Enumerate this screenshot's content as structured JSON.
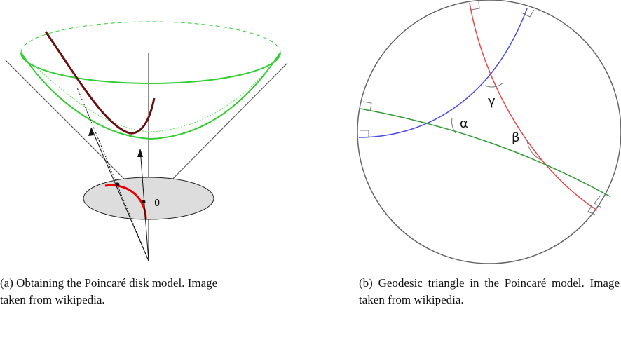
{
  "figures": [
    {
      "label": "(a)",
      "caption": "Obtaining the Poincaré disk model. Image taken from wikipedia.",
      "annotations": [
        "0"
      ]
    },
    {
      "label": "(b)",
      "caption": "Geodesic triangle in the Poincaré model. Image taken from wikipedia.",
      "annotations": [
        "α",
        "γ",
        "β"
      ]
    }
  ]
}
